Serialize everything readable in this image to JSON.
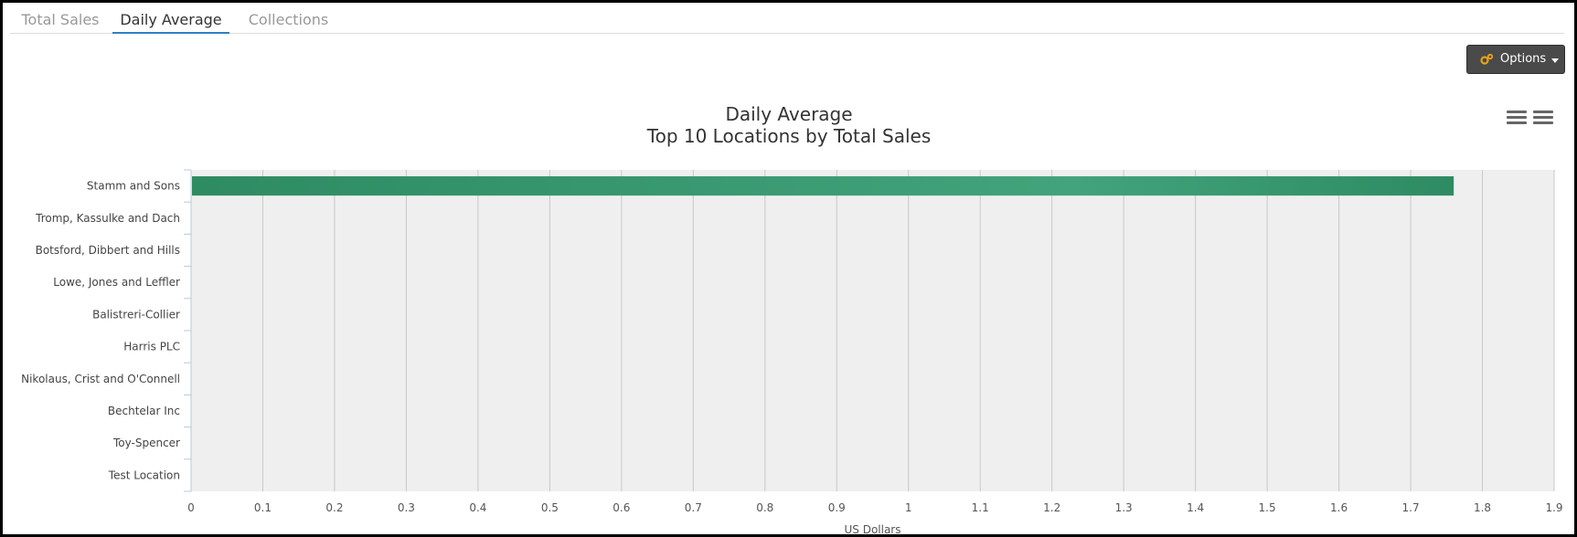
{
  "tabs": [
    {
      "label": "Total Sales",
      "active": false
    },
    {
      "label": "Daily Average",
      "active": true
    },
    {
      "label": "Collections",
      "active": false
    }
  ],
  "toolbar": {
    "options_label": "Options",
    "gear_icon": "gears-icon",
    "accent": "#e8a317"
  },
  "menu_icons": [
    "hamburger-menu-icon",
    "hamburger-menu-icon"
  ],
  "chart_data": {
    "type": "bar",
    "orientation": "horizontal",
    "title": "Daily Average",
    "subtitle": "Top 10 Locations by Total Sales",
    "xlabel": "US Dollars",
    "ylabel": "",
    "xlim": [
      0,
      1.9
    ],
    "ticks": [
      "0",
      "0.1",
      "0.2",
      "0.3",
      "0.4",
      "0.5",
      "0.6",
      "0.7",
      "0.8",
      "0.9",
      "1",
      "1.1",
      "1.2",
      "1.3",
      "1.4",
      "1.5",
      "1.6",
      "1.7",
      "1.8",
      "1.9"
    ],
    "categories": [
      "Stamm and Sons",
      "Tromp, Kassulke and Dach",
      "Botsford, Dibbert and Hills",
      "Lowe, Jones and Leffler",
      "Balistreri-Collier",
      "Harris PLC",
      "Nikolaus, Crist and O'Connell",
      "Bechtelar Inc",
      "Toy-Spencer",
      "Test Location"
    ],
    "values": [
      1.76,
      0,
      0,
      0,
      0,
      0,
      0,
      0,
      0,
      0
    ],
    "grid": true,
    "legend": "none",
    "bar_color": "#2e8b62",
    "plot_background": "#efefef"
  }
}
